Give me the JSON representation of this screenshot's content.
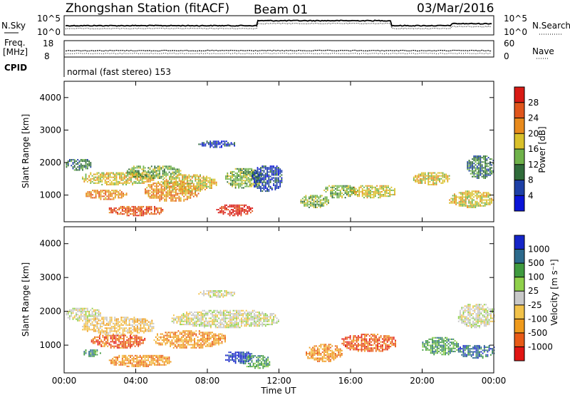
{
  "header": {
    "station": "Zhongshan Station (fitACF)",
    "beam": "Beam 01",
    "date": "03/Mar/2016"
  },
  "strip_labels": {
    "nsky": "N.Sky",
    "nsearch": "N.Search",
    "freq_top": "Freq.",
    "freq_unit": "[MHz]",
    "nave": "Nave",
    "cpid": "CPID",
    "cpid_value": "normal (fast stereo) 153",
    "noise_ticks_left": [
      "10^5",
      "10^0"
    ],
    "noise_ticks_right": [
      "10^5",
      "10^0"
    ],
    "freq_ticks": [
      "18",
      "8"
    ],
    "nave_ticks": [
      "60",
      "0"
    ]
  },
  "colors": {
    "power_scale": [
      "#0a14d8",
      "#1d3fa6",
      "#2f6b3a",
      "#6fb24a",
      "#d9c02a",
      "#e88a1c",
      "#e0551b",
      "#d81a14"
    ],
    "velocity_scale": [
      "#e11513",
      "#e85a16",
      "#ef9a1c",
      "#f2c24a",
      "#c8c8c8",
      "#8fd04a",
      "#3f9a3e",
      "#2c6a8c",
      "#1525c8"
    ]
  },
  "chart_data": [
    {
      "type": "heatmap",
      "name": "power",
      "title": "Zhongshan Station (fitACF) Beam 01 03/Mar/2016",
      "xlabel": "Time UT",
      "ylabel": "Slant Range [km]",
      "colorbar_label": "Power [dB]",
      "colorbar_ticks": [
        "4",
        "8",
        "12",
        "16",
        "20",
        "24",
        "28"
      ],
      "x_ticks": [
        "00:00",
        "04:00",
        "08:00",
        "12:00",
        "16:00",
        "20:00",
        "00:00"
      ],
      "y_ticks": [
        "1000",
        "2000",
        "3000",
        "4000"
      ],
      "xlim": [
        0,
        24
      ],
      "ylim": [
        180,
        4500
      ],
      "blobs": [
        {
          "t0": 0.1,
          "t1": 1.5,
          "r0": 1750,
          "r1": 2100,
          "level": 2
        },
        {
          "t0": 1.0,
          "t1": 5.0,
          "r0": 1300,
          "r1": 1700,
          "level": 4
        },
        {
          "t0": 1.2,
          "t1": 3.5,
          "r0": 850,
          "r1": 1150,
          "level": 5
        },
        {
          "t0": 2.5,
          "t1": 5.5,
          "r0": 350,
          "r1": 650,
          "level": 6
        },
        {
          "t0": 3.5,
          "t1": 6.5,
          "r0": 1500,
          "r1": 1900,
          "level": 3
        },
        {
          "t0": 4.5,
          "t1": 7.5,
          "r0": 800,
          "r1": 1400,
          "level": 5
        },
        {
          "t0": 5.5,
          "t1": 8.5,
          "r0": 1100,
          "r1": 1600,
          "level": 4
        },
        {
          "t0": 7.5,
          "t1": 9.5,
          "r0": 2450,
          "r1": 2650,
          "level": 1
        },
        {
          "t0": 8.5,
          "t1": 10.5,
          "r0": 350,
          "r1": 700,
          "level": 7
        },
        {
          "t0": 9.0,
          "t1": 11.0,
          "r0": 1200,
          "r1": 1800,
          "level": 3
        },
        {
          "t0": 10.5,
          "t1": 12.2,
          "r0": 1100,
          "r1": 1900,
          "level": 1
        },
        {
          "t0": 13.2,
          "t1": 14.8,
          "r0": 600,
          "r1": 1000,
          "level": 3
        },
        {
          "t0": 14.5,
          "t1": 16.3,
          "r0": 900,
          "r1": 1300,
          "level": 3
        },
        {
          "t0": 16.0,
          "t1": 18.5,
          "r0": 900,
          "r1": 1300,
          "level": 4
        },
        {
          "t0": 19.5,
          "t1": 21.5,
          "r0": 1300,
          "r1": 1700,
          "level": 4
        },
        {
          "t0": 21.5,
          "t1": 24.0,
          "r0": 600,
          "r1": 1100,
          "level": 4
        },
        {
          "t0": 22.5,
          "t1": 24.0,
          "r0": 1500,
          "r1": 2200,
          "level": 2
        }
      ]
    },
    {
      "type": "heatmap",
      "name": "velocity",
      "xlabel": "Time UT",
      "ylabel": "Slant Range [km]",
      "colorbar_label": "Velocity [m s⁻¹]",
      "colorbar_ticks": [
        "-1000",
        "-500",
        "-100",
        "-25",
        "25",
        "100",
        "500",
        "1000"
      ],
      "x_ticks": [
        "00:00",
        "04:00",
        "08:00",
        "12:00",
        "16:00",
        "20:00",
        "00:00"
      ],
      "y_ticks": [
        "1000",
        "2000",
        "3000",
        "4000"
      ],
      "xlim": [
        0,
        24
      ],
      "ylim": [
        180,
        4500
      ],
      "blobs": [
        {
          "t0": 0.1,
          "t1": 2.0,
          "r0": 1700,
          "r1": 2100,
          "level": 4
        },
        {
          "t0": 1.0,
          "t1": 5.0,
          "r0": 1300,
          "r1": 1800,
          "level": 3
        },
        {
          "t0": 1.5,
          "t1": 4.5,
          "r0": 900,
          "r1": 1300,
          "level": 1
        },
        {
          "t0": 2.5,
          "t1": 6.0,
          "r0": 350,
          "r1": 700,
          "level": 2
        },
        {
          "t0": 1.0,
          "t1": 2.0,
          "r0": 650,
          "r1": 850,
          "level": 6
        },
        {
          "t0": 5.0,
          "t1": 9.0,
          "r0": 900,
          "r1": 1400,
          "level": 2
        },
        {
          "t0": 6.0,
          "t1": 12.0,
          "r0": 1500,
          "r1": 2000,
          "level": 4
        },
        {
          "t0": 7.5,
          "t1": 9.5,
          "r0": 2400,
          "r1": 2600,
          "level": 4
        },
        {
          "t0": 9.0,
          "t1": 10.5,
          "r0": 450,
          "r1": 800,
          "level": 8
        },
        {
          "t0": 10.0,
          "t1": 11.5,
          "r0": 300,
          "r1": 700,
          "level": 6
        },
        {
          "t0": 13.5,
          "t1": 15.5,
          "r0": 500,
          "r1": 1000,
          "level": 2
        },
        {
          "t0": 15.5,
          "t1": 18.5,
          "r0": 800,
          "r1": 1300,
          "level": 1
        },
        {
          "t0": 20.0,
          "t1": 22.0,
          "r0": 700,
          "r1": 1200,
          "level": 6
        },
        {
          "t0": 22.0,
          "t1": 24.0,
          "r0": 600,
          "r1": 1000,
          "level": 7
        },
        {
          "t0": 22.0,
          "t1": 24.0,
          "r0": 1500,
          "r1": 2200,
          "level": 4
        }
      ]
    }
  ]
}
